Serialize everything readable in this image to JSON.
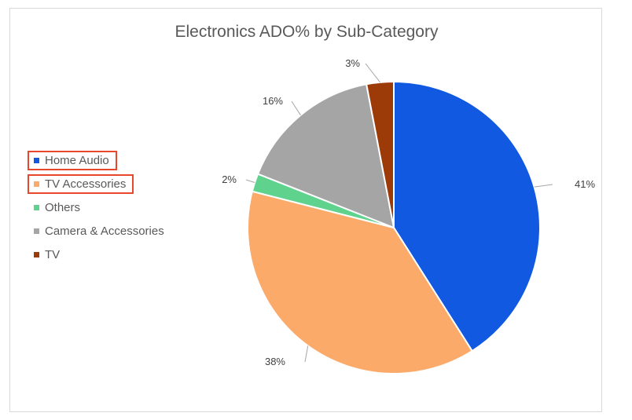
{
  "chart_data": {
    "type": "pie",
    "title": "Electronics ADO% by Sub-Category",
    "slices": [
      {
        "label": "Home Audio",
        "value": 41,
        "data_label": "41%",
        "color": "#1059e0"
      },
      {
        "label": "TV Accessories",
        "value": 38,
        "data_label": "38%",
        "color": "#fcaa6a"
      },
      {
        "label": "Others",
        "value": 2,
        "data_label": "2%",
        "color": "#5fd38d"
      },
      {
        "label": "Camera & Accessories",
        "value": 16,
        "data_label": "16%",
        "color": "#a5a5a5"
      },
      {
        "label": "TV",
        "value": 3,
        "data_label": "3%",
        "color": "#9c3b07"
      }
    ],
    "legend_position": "left",
    "highlighted_legend_items": [
      "Home Audio",
      "TV Accessories"
    ],
    "highlight_color": "#e8472b"
  }
}
